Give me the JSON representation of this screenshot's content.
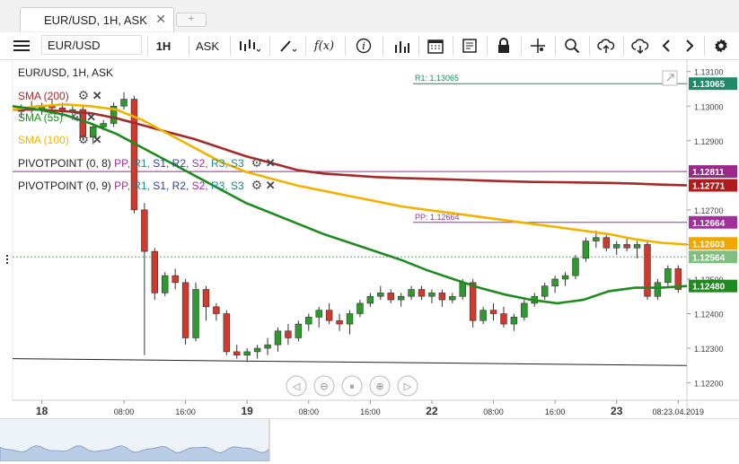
{
  "tab": {
    "title": "EUR/USD, 1H, ASK",
    "close": "✕",
    "add": "+"
  },
  "toolbar": {
    "symbol": "EUR/USD",
    "timeframe": "1H",
    "side": "ASK",
    "indicator_label": "f(x)"
  },
  "legend": {
    "title": "EUR/USD, 1H, ASK",
    "indicators": [
      {
        "name": "SMA (200)",
        "color": "#a52a2a"
      },
      {
        "name": "SMA (55)",
        "color": "#1f8a1f"
      },
      {
        "name": "SMA (100)",
        "color": "#f0b400"
      }
    ],
    "pivots": [
      {
        "name": "PIVOTPOINT (0, 8)",
        "labels": [
          "PP,",
          "R1,",
          "S1,",
          "R2,",
          "S2,",
          "R3,",
          "S3"
        ]
      },
      {
        "name": "PIVOTPOINT (0, 9)",
        "labels": [
          "PP,",
          "R1,",
          "S1,",
          "R2,",
          "S2,",
          "R3,",
          "S3"
        ]
      }
    ],
    "pivot_label_colors": [
      "#a0309a",
      "#1f8a8a",
      "#3040a0",
      "#3040a0",
      "#a0309a",
      "#1f8a8a",
      "#2a8080"
    ]
  },
  "lines": {
    "r1_label": "R1: 1.13065",
    "pp_label": "PP: 1.12664"
  },
  "chart_data": {
    "type": "candlestick",
    "title": "EUR/USD, 1H, ASK",
    "ylim": [
      1.1216,
      1.1312
    ],
    "yticks": [
      "1.13100",
      "1.13000",
      "1.12900",
      "1.12700",
      "1.12600",
      "1.12500",
      "1.12400",
      "1.12300",
      "1.12200"
    ],
    "ytick_values": [
      1.131,
      1.13,
      1.129,
      1.127,
      1.126,
      1.125,
      1.124,
      1.123,
      1.122
    ],
    "xticks": [
      "18",
      "08:00",
      "16:00",
      "19",
      "08:00",
      "16:00",
      "22",
      "08:00",
      "16:00",
      "23",
      "08:23.04.2019"
    ],
    "xtick_index": [
      2,
      10,
      16,
      22,
      28,
      34,
      40,
      46,
      52,
      58,
      64
    ],
    "candles": [
      [
        1.12985,
        1.13005,
        1.12965,
        1.12995
      ],
      [
        1.12995,
        1.13015,
        1.1298,
        1.1299
      ],
      [
        1.1299,
        1.1301,
        1.12975,
        1.13
      ],
      [
        1.13,
        1.1302,
        1.12985,
        1.12995
      ],
      [
        1.12995,
        1.1301,
        1.1297,
        1.12985
      ],
      [
        1.12985,
        1.13,
        1.1296,
        1.1299
      ],
      [
        1.1299,
        1.13005,
        1.129,
        1.1291
      ],
      [
        1.1291,
        1.1295,
        1.1289,
        1.1294
      ],
      [
        1.1294,
        1.1296,
        1.1293,
        1.1295
      ],
      [
        1.1295,
        1.1301,
        1.1294,
        1.13
      ],
      [
        1.13,
        1.1304,
        1.1299,
        1.1302
      ],
      [
        1.1302,
        1.1303,
        1.1269,
        1.127
      ],
      [
        1.127,
        1.1272,
        1.1228,
        1.1258
      ],
      [
        1.1258,
        1.1259,
        1.1244,
        1.1246
      ],
      [
        1.1246,
        1.1252,
        1.1245,
        1.1251
      ],
      [
        1.1251,
        1.1253,
        1.1247,
        1.1249
      ],
      [
        1.1249,
        1.125,
        1.1231,
        1.1233
      ],
      [
        1.1233,
        1.1249,
        1.1232,
        1.1247
      ],
      [
        1.1247,
        1.1248,
        1.1238,
        1.1242
      ],
      [
        1.1242,
        1.1243,
        1.1238,
        1.124
      ],
      [
        1.124,
        1.1241,
        1.1228,
        1.1229
      ],
      [
        1.1229,
        1.1231,
        1.1227,
        1.1228
      ],
      [
        1.1228,
        1.123,
        1.1226,
        1.1229
      ],
      [
        1.1229,
        1.1231,
        1.1227,
        1.123
      ],
      [
        1.123,
        1.1233,
        1.1228,
        1.1231
      ],
      [
        1.1231,
        1.1236,
        1.1229,
        1.1235
      ],
      [
        1.1235,
        1.1237,
        1.1231,
        1.1233
      ],
      [
        1.1233,
        1.1238,
        1.1232,
        1.1237
      ],
      [
        1.1237,
        1.124,
        1.1235,
        1.1239
      ],
      [
        1.1239,
        1.1242,
        1.1236,
        1.1241
      ],
      [
        1.1241,
        1.1243,
        1.1237,
        1.1238
      ],
      [
        1.1238,
        1.124,
        1.1235,
        1.1237
      ],
      [
        1.1237,
        1.1241,
        1.1234,
        1.124
      ],
      [
        1.124,
        1.1244,
        1.1239,
        1.1243
      ],
      [
        1.1243,
        1.1246,
        1.1242,
        1.1245
      ],
      [
        1.1245,
        1.1248,
        1.1244,
        1.1246
      ],
      [
        1.1246,
        1.1247,
        1.1243,
        1.1244
      ],
      [
        1.1244,
        1.1246,
        1.1242,
        1.1245
      ],
      [
        1.1245,
        1.1248,
        1.1244,
        1.1247
      ],
      [
        1.1247,
        1.1248,
        1.1244,
        1.1245
      ],
      [
        1.1245,
        1.1247,
        1.1243,
        1.1246
      ],
      [
        1.1246,
        1.1247,
        1.1242,
        1.1244
      ],
      [
        1.1244,
        1.1246,
        1.1243,
        1.1245
      ],
      [
        1.1245,
        1.125,
        1.1244,
        1.1249
      ],
      [
        1.1249,
        1.125,
        1.1236,
        1.1238
      ],
      [
        1.1238,
        1.1242,
        1.1237,
        1.1241
      ],
      [
        1.1241,
        1.1243,
        1.1238,
        1.124
      ],
      [
        1.124,
        1.1242,
        1.1236,
        1.1237
      ],
      [
        1.1237,
        1.124,
        1.1235,
        1.1239
      ],
      [
        1.1239,
        1.1244,
        1.1238,
        1.1243
      ],
      [
        1.1243,
        1.1246,
        1.1242,
        1.1245
      ],
      [
        1.1245,
        1.1249,
        1.1244,
        1.1248
      ],
      [
        1.1248,
        1.1251,
        1.1246,
        1.125
      ],
      [
        1.125,
        1.1252,
        1.1248,
        1.1251
      ],
      [
        1.1251,
        1.1257,
        1.125,
        1.1256
      ],
      [
        1.1256,
        1.1262,
        1.1255,
        1.1261
      ],
      [
        1.1261,
        1.1264,
        1.1259,
        1.1262
      ],
      [
        1.1262,
        1.1263,
        1.1258,
        1.1259
      ],
      [
        1.1259,
        1.1261,
        1.1257,
        1.126
      ],
      [
        1.126,
        1.1262,
        1.1258,
        1.1259
      ],
      [
        1.1259,
        1.1261,
        1.1256,
        1.126
      ],
      [
        1.126,
        1.1261,
        1.1244,
        1.1245
      ],
      [
        1.1245,
        1.125,
        1.1244,
        1.1249
      ],
      [
        1.1249,
        1.1254,
        1.1248,
        1.1253
      ],
      [
        1.1253,
        1.1254,
        1.1246,
        1.1247
      ]
    ],
    "sma55": [
      1.13,
      1.1299,
      1.12975,
      1.1295,
      1.1292,
      1.1288,
      1.1284,
      1.128,
      1.1276,
      1.1272,
      1.1269,
      1.1266,
      1.1263,
      1.12605,
      1.1258,
      1.12555,
      1.12525,
      1.125,
      1.12475,
      1.12455,
      1.1244,
      1.1243,
      1.1244,
      1.12465,
      1.12475,
      1.12475,
      1.1248
    ],
    "sma100": [
      1.1299,
      1.13,
      1.13005,
      1.13,
      1.1299,
      1.1296,
      1.1292,
      1.1288,
      1.1284,
      1.1281,
      1.1279,
      1.1277,
      1.12755,
      1.1274,
      1.12725,
      1.1271,
      1.127,
      1.1269,
      1.1268,
      1.1267,
      1.1266,
      1.1265,
      1.1264,
      1.1263,
      1.12615,
      1.12605,
      1.126
    ],
    "sma200": [
      1.1299,
      1.1299,
      1.12985,
      1.1298,
      1.12965,
      1.12945,
      1.12925,
      1.12905,
      1.1288,
      1.12855,
      1.12835,
      1.12815,
      1.12805,
      1.128,
      1.12795,
      1.12792,
      1.1279,
      1.12788,
      1.12785,
      1.12783,
      1.12781,
      1.1278,
      1.12779,
      1.12778,
      1.12776,
      1.12773,
      1.12771
    ],
    "levels": [
      {
        "label": "1.13065",
        "value": 1.13065,
        "color": "#1f8a6a"
      },
      {
        "label": "1.12811",
        "value": 1.12811,
        "color": "#9a2a8a"
      },
      {
        "label": "1.12771",
        "value": 1.12771,
        "color": "#b01c1c"
      },
      {
        "label": "1.12664",
        "value": 1.12664,
        "color": "#a0309a"
      },
      {
        "label": "1.12603",
        "value": 1.12603,
        "color": "#f0a800"
      },
      {
        "label": "1.12564",
        "value": 1.12564,
        "color": "#7fbf7f"
      },
      {
        "label": "1.12480",
        "value": 1.1248,
        "color": "#1f8a1f"
      }
    ],
    "trendline": [
      [
        0,
        1.1227
      ],
      [
        66,
        1.1225
      ]
    ]
  }
}
